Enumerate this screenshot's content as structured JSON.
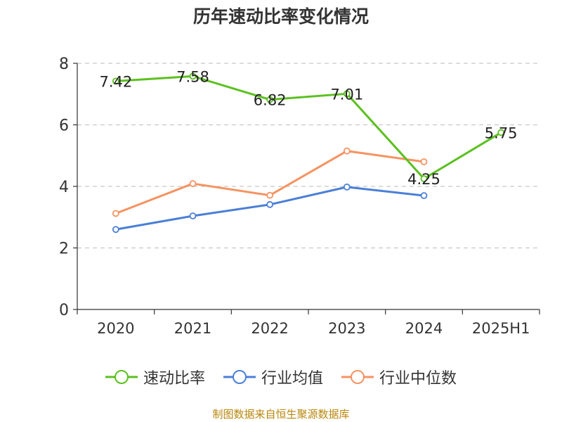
{
  "chart_data": {
    "type": "line",
    "title": "历年速动比率变化情况",
    "categories": [
      "2020",
      "2021",
      "2022",
      "2023",
      "2024",
      "2025H1"
    ],
    "ylim": [
      0,
      8
    ],
    "yticks": [
      "0",
      "2",
      "4",
      "6",
      "8"
    ],
    "grid": true,
    "legend_position": "bottom",
    "series": [
      {
        "name": "速动比率",
        "color": "#5cc020",
        "values": [
          7.42,
          7.58,
          6.82,
          7.01,
          4.25,
          5.75
        ],
        "labels": [
          "7.42",
          "7.58",
          "6.82",
          "7.01",
          "4.25",
          "5.75"
        ]
      },
      {
        "name": "行业均值",
        "color": "#4a7fd6",
        "values": [
          2.6,
          3.04,
          3.41,
          3.98,
          3.7,
          null
        ]
      },
      {
        "name": "行业中位数",
        "color": "#f59361",
        "values": [
          3.12,
          4.09,
          3.71,
          5.15,
          4.8,
          null
        ]
      }
    ]
  },
  "footer": {
    "source": "制图数据来自恒生聚源数据库"
  }
}
